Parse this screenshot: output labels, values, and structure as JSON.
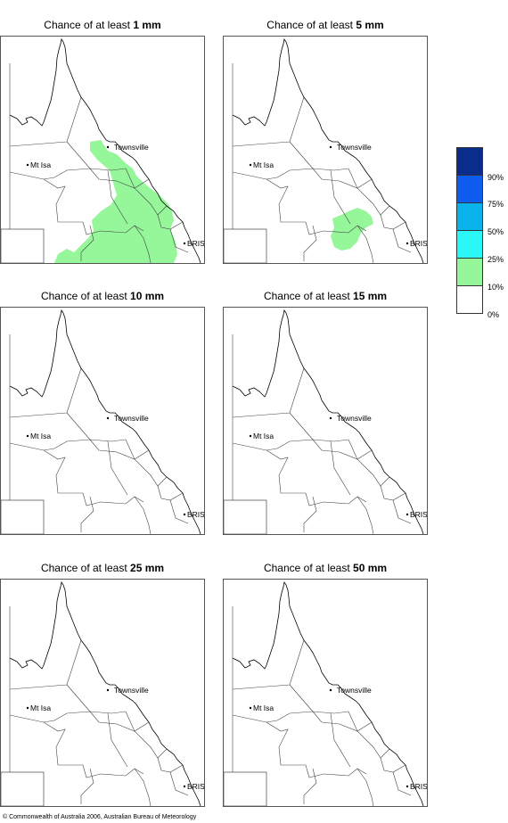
{
  "panels": [
    {
      "title_prefix": "Chance of at least ",
      "amount": "1 mm",
      "green": "large"
    },
    {
      "title_prefix": "Chance of at least ",
      "amount": "5 mm",
      "green": "small"
    },
    {
      "title_prefix": "Chance of at least ",
      "amount": "10 mm",
      "green": "none"
    },
    {
      "title_prefix": "Chance of at least ",
      "amount": "15 mm",
      "green": "none"
    },
    {
      "title_prefix": "Chance of at least ",
      "amount": "25 mm",
      "green": "none"
    },
    {
      "title_prefix": "Chance of at least ",
      "amount": "50 mm",
      "green": "none"
    }
  ],
  "map_labels": {
    "townsville": "Townsville",
    "mt_isa": "Mt Isa",
    "bris": "BRIS"
  },
  "legend": {
    "colors": [
      "#0a2d8c",
      "#0f5cf0",
      "#09b4ec",
      "#2cf7f7",
      "#95f79a",
      "#ffffff"
    ],
    "labels": [
      "90%",
      "75%",
      "50%",
      "25%",
      "10%",
      "0%"
    ]
  },
  "highlight_color": "#95f79a",
  "copyright": "© Commonwealth of Australia 2006, Australian Bureau of Meteorology"
}
